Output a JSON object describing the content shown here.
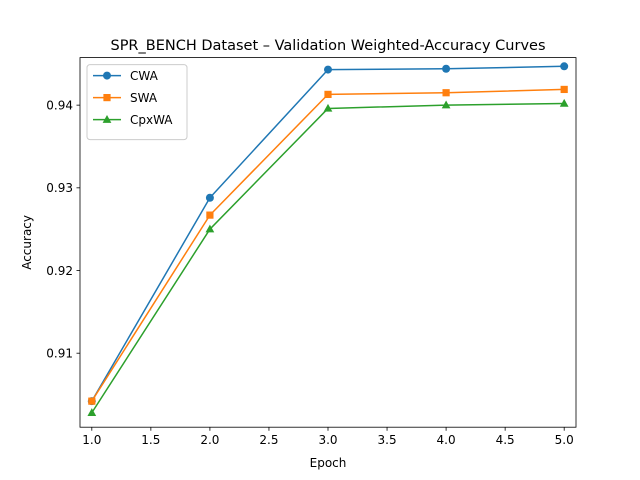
{
  "chart_data": {
    "type": "line",
    "title": "SPR_BENCH Dataset – Validation Weighted-Accuracy Curves",
    "xlabel": "Epoch",
    "ylabel": "Accuracy",
    "x": [
      1.0,
      2.0,
      3.0,
      4.0,
      5.0
    ],
    "xlim": [
      0.9,
      5.1
    ],
    "ylim": [
      0.90105,
      0.94575
    ],
    "xticks": [
      1.0,
      1.5,
      2.0,
      2.5,
      3.0,
      3.5,
      4.0,
      4.5,
      5.0
    ],
    "xtick_labels": [
      "1.0",
      "1.5",
      "2.0",
      "2.5",
      "3.0",
      "3.5",
      "4.0",
      "4.5",
      "5.0"
    ],
    "yticks": [
      0.91,
      0.92,
      0.93,
      0.94
    ],
    "ytick_labels": [
      "0.91",
      "0.92",
      "0.93",
      "0.94"
    ],
    "grid": false,
    "legend_position": "upper-left",
    "series": [
      {
        "name": "CWA",
        "color": "#1f77b4",
        "marker": "circle",
        "values": [
          0.9042,
          0.9288,
          0.9443,
          0.9444,
          0.9447
        ]
      },
      {
        "name": "SWA",
        "color": "#ff7f0e",
        "marker": "square",
        "values": [
          0.9042,
          0.9267,
          0.9413,
          0.9415,
          0.9419
        ]
      },
      {
        "name": "CpxWA",
        "color": "#2ca02c",
        "marker": "triangle",
        "values": [
          0.9028,
          0.925,
          0.9396,
          0.94,
          0.9402
        ]
      }
    ]
  }
}
